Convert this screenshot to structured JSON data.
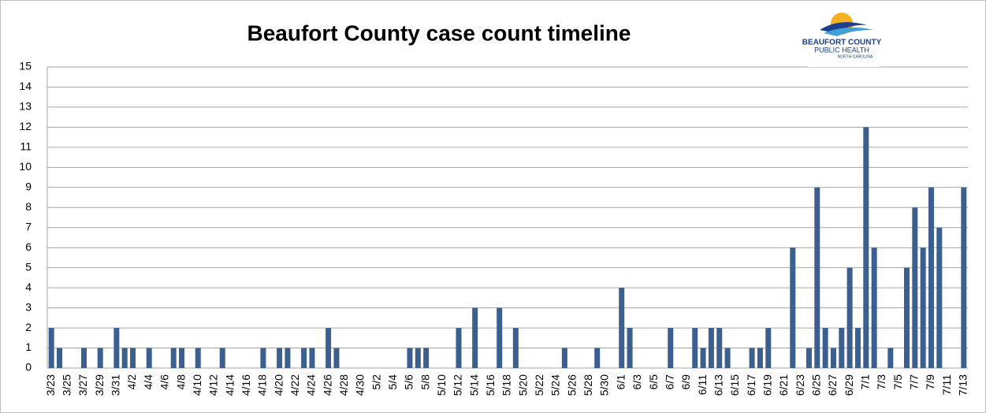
{
  "logo_lines": [
    "BEAUFORT COUNTY",
    "PUBLIC HEALTH",
    "NORTH CAROLINA"
  ],
  "chart_data": {
    "type": "bar",
    "title": "Beaufort County case count timeline",
    "categories": [
      "3/23",
      null,
      "3/25",
      null,
      "3/27",
      null,
      "3/29",
      null,
      "3/31",
      null,
      "4/2",
      null,
      "4/4",
      null,
      "4/6",
      null,
      "4/8",
      null,
      "4/10",
      null,
      "4/12",
      null,
      "4/14",
      null,
      "4/16",
      null,
      "4/18",
      null,
      "4/20",
      null,
      "4/22",
      null,
      "4/24",
      null,
      "4/26",
      null,
      "4/28",
      null,
      "4/30",
      null,
      "5/2",
      null,
      "5/4",
      null,
      "5/6",
      null,
      "5/8",
      null,
      "5/10",
      null,
      "5/12",
      null,
      "5/14",
      null,
      "5/16",
      null,
      "5/18",
      null,
      "5/20",
      null,
      "5/22",
      null,
      "5/24",
      null,
      "5/26",
      null,
      "5/28",
      null,
      "5/30",
      null,
      "6/1",
      null,
      "6/3",
      null,
      "6/5",
      null,
      "6/7",
      null,
      "6/9",
      null,
      "6/11",
      null,
      "6/13",
      null,
      "6/15",
      null,
      "6/17",
      null,
      "6/19",
      null,
      "6/21",
      null,
      "6/23",
      null,
      "6/25",
      null,
      "6/27",
      null,
      "6/29",
      null,
      "7/1",
      null,
      "7/3",
      null,
      "7/5",
      null,
      "7/7",
      null,
      "7/9",
      null,
      "7/11",
      null,
      "7/13"
    ],
    "values": [
      2,
      1,
      0,
      0,
      1,
      0,
      1,
      0,
      2,
      1,
      1,
      0,
      1,
      0,
      0,
      1,
      1,
      0,
      1,
      0,
      0,
      1,
      0,
      0,
      0,
      0,
      1,
      0,
      1,
      1,
      0,
      1,
      1,
      0,
      2,
      1,
      0,
      0,
      0,
      0,
      0,
      0,
      0,
      0,
      1,
      1,
      1,
      0,
      0,
      0,
      2,
      0,
      3,
      0,
      0,
      3,
      0,
      2,
      0,
      0,
      0,
      0,
      0,
      1,
      0,
      0,
      0,
      1,
      0,
      0,
      4,
      2,
      0,
      0,
      0,
      0,
      2,
      0,
      0,
      2,
      1,
      2,
      2,
      1,
      0,
      0,
      1,
      1,
      2,
      0,
      0,
      6,
      0,
      1,
      9,
      2,
      1,
      2,
      5,
      2,
      12,
      6,
      0,
      1,
      0,
      5,
      8,
      6,
      9,
      7,
      0,
      0,
      9
    ],
    "color": "#3b5f8e",
    "ylim": [
      0,
      15
    ],
    "yticks": [
      0,
      1,
      2,
      3,
      4,
      5,
      6,
      7,
      8,
      9,
      10,
      11,
      12,
      13,
      14,
      15
    ],
    "grid": true
  }
}
